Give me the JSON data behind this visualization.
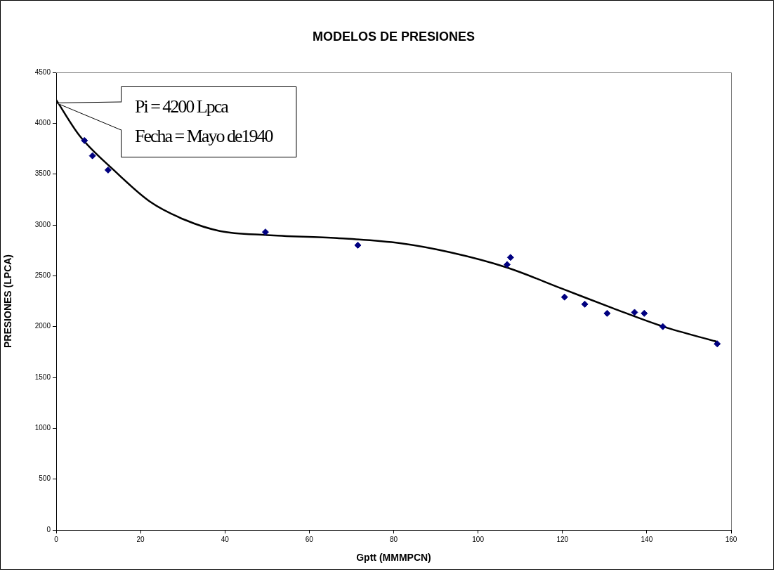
{
  "chart_data": {
    "type": "scatter",
    "title": "MODELOS DE PRESIONES",
    "xlabel": "Gptt (MMMPCN)",
    "ylabel": "PRESIONES (LPCA)",
    "xlim": [
      0,
      160
    ],
    "xticks": [
      0,
      20,
      40,
      60,
      80,
      100,
      120,
      140,
      160
    ],
    "ylim": [
      0,
      4500
    ],
    "yticks": [
      0,
      500,
      1000,
      1500,
      2000,
      2500,
      3000,
      3500,
      4000,
      4500
    ],
    "grid": false,
    "legend": false,
    "series": [
      {
        "type": "scatter",
        "color": "#000080",
        "marker": "diamond",
        "x": [
          6.7,
          8.6,
          12.3,
          49.6,
          71.5,
          106.9,
          107.7,
          120.5,
          125.3,
          130.6,
          137.1,
          139.4,
          143.8,
          156.7
        ],
        "values": [
          3830,
          3680,
          3540,
          2930,
          2800,
          2610,
          2680,
          2290,
          2220,
          2130,
          2140,
          2130,
          2000,
          1830
        ]
      },
      {
        "type": "line",
        "color": "#000000",
        "marker": "none",
        "line_style": "solid",
        "x": [
          0,
          5.5,
          13.9,
          22.2,
          30.5,
          38.8,
          50,
          66.6,
          81.5,
          93.4,
          106.9,
          120.1,
          132,
          143.9,
          156.7
        ],
        "values": [
          4230,
          3880,
          3530,
          3230,
          3050,
          2940,
          2900,
          2870,
          2820,
          2730,
          2580,
          2370,
          2180,
          2000,
          1850
        ]
      }
    ],
    "annotations": [
      {
        "text": "Pi = 4200 Lpca\nFecha = Mayo de1940",
        "x": 0,
        "y": 4200
      }
    ]
  }
}
